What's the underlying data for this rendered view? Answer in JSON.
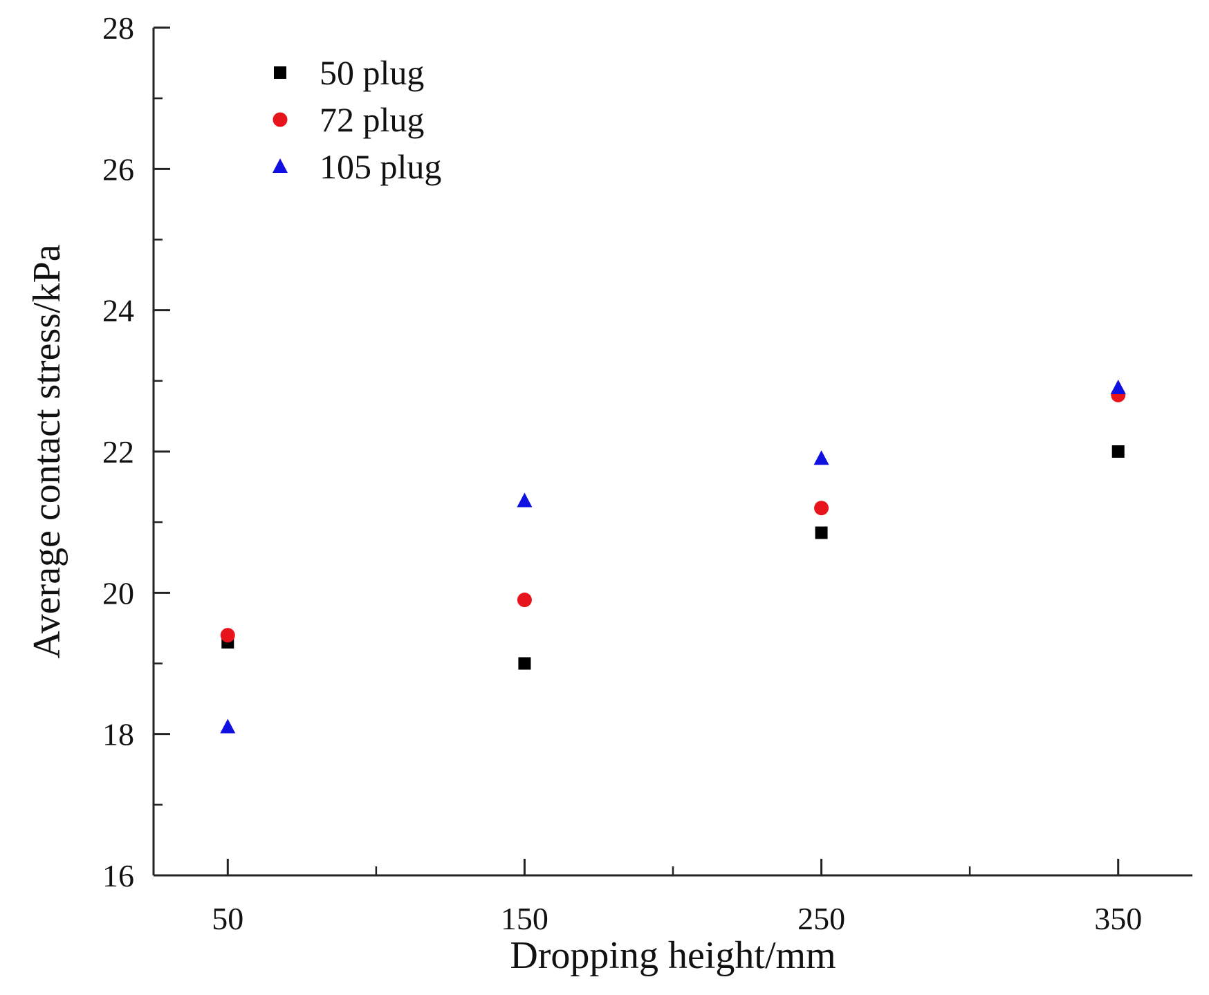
{
  "chart_data": {
    "type": "scatter",
    "title": "",
    "xlabel": "Dropping height/mm",
    "ylabel": "Average  contact stress/kPa",
    "x": [
      50,
      150,
      250,
      350
    ],
    "xlim": [
      25,
      375
    ],
    "ylim": [
      16,
      28
    ],
    "xticks": [
      50,
      150,
      250,
      350
    ],
    "xtick_labels": [
      "50",
      "150",
      "250",
      "350"
    ],
    "xminor": [
      100,
      200,
      300
    ],
    "yticks": [
      16,
      18,
      20,
      22,
      24,
      26,
      28
    ],
    "ytick_labels": [
      "16",
      "18",
      "20",
      "22",
      "24",
      "26",
      "28"
    ],
    "yminor": [
      17,
      19,
      21,
      23,
      25,
      27
    ],
    "grid": false,
    "legend_position": "top-left",
    "series": [
      {
        "name": "50 plug",
        "marker": "square",
        "color": "#000000",
        "values": [
          19.3,
          19.0,
          20.85,
          22.0
        ]
      },
      {
        "name": "72 plug",
        "marker": "circle",
        "color": "#e8141c",
        "values": [
          19.4,
          19.9,
          21.2,
          22.8
        ]
      },
      {
        "name": "105 plug",
        "marker": "triangle",
        "color": "#1010e0",
        "values": [
          18.1,
          21.3,
          21.9,
          22.9
        ]
      }
    ]
  }
}
